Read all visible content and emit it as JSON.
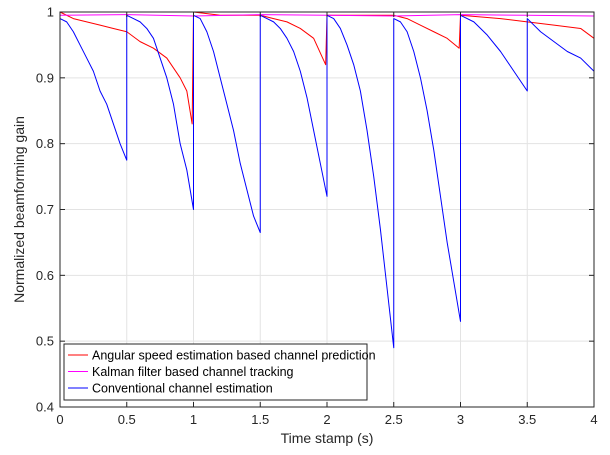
{
  "chart_data": {
    "type": "line",
    "title": "",
    "xlabel": "Time stamp (s)",
    "ylabel": "Normalized beamforming gain",
    "xlim": [
      0,
      4
    ],
    "ylim": [
      0.4,
      1
    ],
    "xticks": [
      "0",
      "0.5",
      "1",
      "1.5",
      "2",
      "2.5",
      "3",
      "3.5",
      "4"
    ],
    "yticks": [
      "0.4",
      "0.5",
      "0.6",
      "0.7",
      "0.8",
      "0.9",
      "1"
    ],
    "grid": true,
    "legend_position": "bottom-left",
    "series": [
      {
        "name": "Angular speed estimation based channel prediction",
        "color": "#ff0000",
        "x": [
          0,
          0.1,
          0.2,
          0.3,
          0.4,
          0.5,
          0.6,
          0.7,
          0.8,
          0.9,
          0.95,
          0.99,
          1.0,
          1.2,
          1.4,
          1.5,
          1.6,
          1.7,
          1.8,
          1.9,
          1.99,
          2.0,
          2.2,
          2.5,
          2.6,
          2.7,
          2.8,
          2.9,
          2.99,
          3.0,
          3.3,
          3.5,
          3.7,
          3.9,
          4.0
        ],
        "y": [
          1.0,
          0.99,
          0.985,
          0.98,
          0.975,
          0.97,
          0.955,
          0.945,
          0.93,
          0.9,
          0.88,
          0.83,
          1.0,
          0.995,
          0.995,
          0.995,
          0.99,
          0.985,
          0.975,
          0.96,
          0.92,
          0.995,
          0.995,
          0.995,
          0.99,
          0.98,
          0.97,
          0.96,
          0.945,
          0.995,
          0.99,
          0.985,
          0.98,
          0.975,
          0.96
        ]
      },
      {
        "name": "Kalman filter based channel tracking",
        "color": "#ff00ff",
        "x": [
          0,
          0.5,
          1.0,
          1.5,
          2.0,
          2.5,
          3.0,
          3.5,
          4.0
        ],
        "y": [
          0.995,
          0.996,
          0.994,
          0.996,
          0.995,
          0.994,
          0.996,
          0.995,
          0.994
        ]
      },
      {
        "name": "Conventional channel estimation",
        "color": "#0000ff",
        "x": [
          0,
          0.05,
          0.1,
          0.15,
          0.2,
          0.25,
          0.3,
          0.35,
          0.4,
          0.45,
          0.5,
          0.5,
          0.55,
          0.6,
          0.65,
          0.7,
          0.75,
          0.8,
          0.85,
          0.9,
          0.95,
          1.0,
          1.0,
          1.05,
          1.1,
          1.15,
          1.2,
          1.25,
          1.3,
          1.35,
          1.4,
          1.45,
          1.5,
          1.5,
          1.55,
          1.6,
          1.65,
          1.7,
          1.75,
          1.8,
          1.85,
          1.9,
          1.95,
          2.0,
          2.0,
          2.05,
          2.1,
          2.15,
          2.2,
          2.25,
          2.3,
          2.35,
          2.4,
          2.45,
          2.5,
          2.5,
          2.55,
          2.6,
          2.65,
          2.7,
          2.75,
          2.8,
          2.85,
          2.9,
          2.95,
          3.0,
          3.0,
          3.1,
          3.2,
          3.3,
          3.4,
          3.5,
          3.5,
          3.6,
          3.7,
          3.8,
          3.9,
          4.0
        ],
        "y": [
          0.99,
          0.985,
          0.97,
          0.95,
          0.93,
          0.91,
          0.88,
          0.86,
          0.83,
          0.8,
          0.775,
          0.995,
          0.99,
          0.985,
          0.975,
          0.96,
          0.93,
          0.9,
          0.86,
          0.8,
          0.76,
          0.7,
          0.995,
          0.99,
          0.97,
          0.94,
          0.9,
          0.86,
          0.82,
          0.77,
          0.73,
          0.69,
          0.665,
          0.995,
          0.99,
          0.985,
          0.975,
          0.96,
          0.94,
          0.91,
          0.87,
          0.82,
          0.77,
          0.72,
          0.995,
          0.99,
          0.975,
          0.95,
          0.92,
          0.88,
          0.82,
          0.75,
          0.67,
          0.58,
          0.49,
          0.99,
          0.985,
          0.97,
          0.94,
          0.9,
          0.85,
          0.79,
          0.72,
          0.65,
          0.59,
          0.53,
          0.995,
          0.985,
          0.965,
          0.94,
          0.91,
          0.88,
          0.99,
          0.97,
          0.955,
          0.94,
          0.93,
          0.91
        ]
      }
    ]
  }
}
